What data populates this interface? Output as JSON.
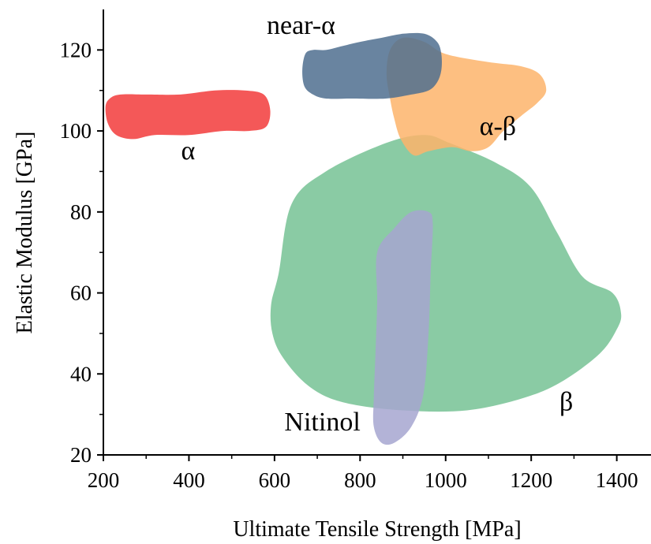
{
  "chart_data": {
    "type": "scatter",
    "subtype": "property-region-map",
    "title": "",
    "xlabel": "Ultimate Tensile Strength [MPa]",
    "ylabel": "Elastic Modulus [GPa]",
    "xlim": [
      200,
      1480
    ],
    "ylim": [
      20,
      130
    ],
    "xticks": [
      200,
      400,
      600,
      800,
      1000,
      1200,
      1400
    ],
    "yticks": [
      20,
      40,
      60,
      80,
      100,
      120
    ],
    "grid": false,
    "legend": "none",
    "regions": [
      {
        "label": "β",
        "color": "#7dc59a",
        "points": [
          [
            610,
            65
          ],
          [
            640,
            82
          ],
          [
            720,
            90
          ],
          [
            860,
            97
          ],
          [
            950,
            99
          ],
          [
            1010,
            97
          ],
          [
            1120,
            92
          ],
          [
            1200,
            86
          ],
          [
            1260,
            75
          ],
          [
            1320,
            64
          ],
          [
            1390,
            60
          ],
          [
            1410,
            55
          ],
          [
            1400,
            51
          ],
          [
            1360,
            45
          ],
          [
            1270,
            38
          ],
          [
            1180,
            34
          ],
          [
            1050,
            31
          ],
          [
            900,
            31
          ],
          [
            760,
            33
          ],
          [
            680,
            37
          ],
          [
            620,
            44
          ],
          [
            595,
            50
          ],
          [
            592,
            57
          ]
        ]
      },
      {
        "label": "α-β",
        "color": "#fdb46b",
        "points": [
          [
            870,
            120
          ],
          [
            900,
            123
          ],
          [
            950,
            122
          ],
          [
            1000,
            119
          ],
          [
            1100,
            117
          ],
          [
            1175,
            116
          ],
          [
            1220,
            114
          ],
          [
            1235,
            110
          ],
          [
            1215,
            107
          ],
          [
            1180,
            104
          ],
          [
            1135,
            100
          ],
          [
            1100,
            96
          ],
          [
            1060,
            95
          ],
          [
            1015,
            96
          ],
          [
            960,
            95
          ],
          [
            925,
            94
          ],
          [
            895,
            98
          ],
          [
            880,
            103
          ],
          [
            870,
            108
          ],
          [
            862,
            114
          ]
        ]
      },
      {
        "label": "near-α",
        "color": "#4f6e8f",
        "points": [
          [
            690,
            120
          ],
          [
            720,
            120
          ],
          [
            760,
            121
          ],
          [
            800,
            122
          ],
          [
            850,
            123
          ],
          [
            900,
            124
          ],
          [
            950,
            124
          ],
          [
            980,
            122
          ],
          [
            990,
            119
          ],
          [
            990,
            115
          ],
          [
            980,
            112
          ],
          [
            960,
            110
          ],
          [
            920,
            109
          ],
          [
            860,
            108
          ],
          [
            780,
            108
          ],
          [
            720,
            108
          ],
          [
            690,
            109
          ],
          [
            670,
            111
          ],
          [
            665,
            115
          ],
          [
            672,
            119
          ]
        ]
      },
      {
        "label": "α",
        "color": "#f34f4f",
        "points": [
          [
            240,
            109
          ],
          [
            300,
            109
          ],
          [
            380,
            109
          ],
          [
            460,
            110
          ],
          [
            530,
            110
          ],
          [
            575,
            109
          ],
          [
            590,
            105
          ],
          [
            580,
            101
          ],
          [
            540,
            100
          ],
          [
            480,
            100
          ],
          [
            400,
            99
          ],
          [
            320,
            99
          ],
          [
            270,
            98
          ],
          [
            230,
            99
          ],
          [
            210,
            102
          ],
          [
            205,
            106
          ],
          [
            215,
            108
          ]
        ]
      },
      {
        "label": "Nitinol",
        "color": "#a6a6d0",
        "points": [
          [
            840,
            70
          ],
          [
            880,
            76
          ],
          [
            920,
            80
          ],
          [
            960,
            80
          ],
          [
            970,
            77
          ],
          [
            965,
            65
          ],
          [
            960,
            50
          ],
          [
            948,
            35
          ],
          [
            920,
            27
          ],
          [
            880,
            23
          ],
          [
            850,
            23
          ],
          [
            832,
            27
          ],
          [
            832,
            34
          ],
          [
            836,
            45
          ],
          [
            840,
            58
          ]
        ]
      }
    ],
    "annotations": [
      {
        "text": "near-α",
        "x": 662,
        "y": 124
      },
      {
        "text": "α-β",
        "x": 1122,
        "y": 99
      },
      {
        "text": "α",
        "x": 398,
        "y": 93
      },
      {
        "text": "β",
        "x": 1282,
        "y": 31
      },
      {
        "text": "Nitinol",
        "x": 712,
        "y": 26
      }
    ]
  }
}
